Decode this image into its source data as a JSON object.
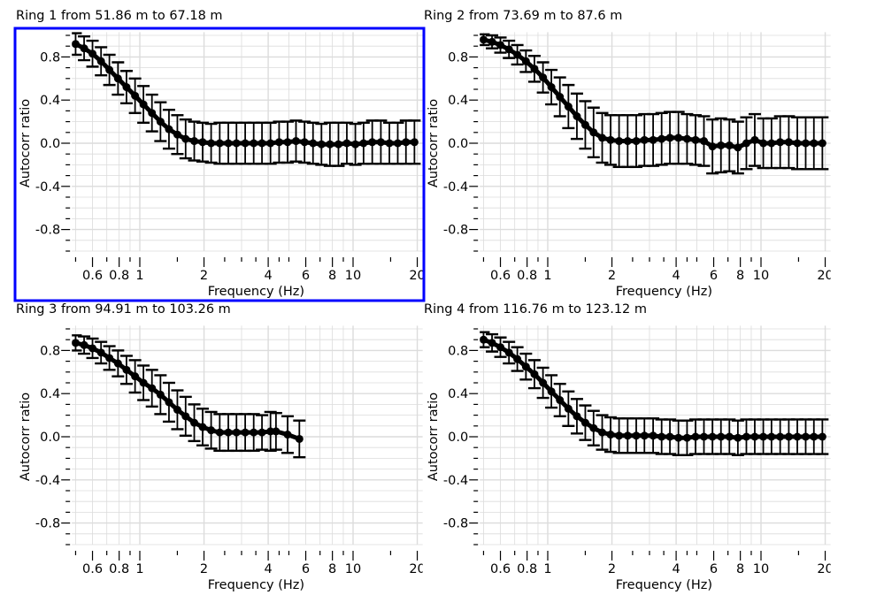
{
  "selected_panel": 0,
  "colors": {
    "selection": "#0000ff",
    "marker": "#000000",
    "grid": "#dcdcdc"
  },
  "chart_data": [
    {
      "type": "scatter",
      "title": "Ring 1 from 51.86 m to 67.18 m",
      "xlabel": "Frequency (Hz)",
      "ylabel": "Autocorr ratio",
      "xscale": "log",
      "xlim": [
        0.48,
        21.2
      ],
      "ylim": [
        -1.0,
        1.03
      ],
      "xticks": [
        "0.6",
        "0.8",
        "1",
        "2",
        "4",
        "6",
        "8",
        "10",
        "20"
      ],
      "yticks": [
        "0.8",
        "0.4",
        "0.0",
        "-0.4",
        "-0.8"
      ],
      "grid": true,
      "x": [
        0.5,
        0.548,
        0.6,
        0.658,
        0.72,
        0.79,
        0.866,
        0.95,
        1.04,
        1.14,
        1.25,
        1.37,
        1.5,
        1.64,
        1.8,
        1.97,
        2.16,
        2.37,
        2.6,
        2.84,
        3.12,
        3.42,
        3.74,
        4.1,
        4.5,
        4.93,
        5.4,
        5.92,
        6.49,
        7.11,
        7.79,
        8.54,
        9.35,
        10.25,
        11.2,
        12.3,
        13.5,
        14.8,
        16.2,
        17.7,
        19.4
      ],
      "y": [
        0.92,
        0.88,
        0.83,
        0.76,
        0.68,
        0.6,
        0.52,
        0.44,
        0.36,
        0.28,
        0.2,
        0.13,
        0.08,
        0.04,
        0.02,
        0.01,
        0.0,
        0.0,
        0.0,
        0.0,
        0.0,
        0.0,
        0.0,
        0.0,
        0.01,
        0.01,
        0.02,
        0.01,
        0.0,
        -0.01,
        -0.01,
        -0.01,
        0.0,
        -0.01,
        0.0,
        0.01,
        0.01,
        0.0,
        0.0,
        0.01,
        0.01
      ],
      "err": [
        0.1,
        0.11,
        0.12,
        0.13,
        0.14,
        0.15,
        0.15,
        0.16,
        0.17,
        0.17,
        0.18,
        0.18,
        0.18,
        0.18,
        0.18,
        0.18,
        0.18,
        0.19,
        0.19,
        0.19,
        0.19,
        0.19,
        0.19,
        0.19,
        0.19,
        0.19,
        0.19,
        0.19,
        0.19,
        0.19,
        0.2,
        0.2,
        0.19,
        0.19,
        0.19,
        0.2,
        0.2,
        0.19,
        0.19,
        0.2,
        0.2
      ]
    },
    {
      "type": "scatter",
      "title": "Ring 2 from 73.69 m to 87.6 m",
      "xlabel": "Frequency (Hz)",
      "ylabel": "Autocorr ratio",
      "xscale": "log",
      "xlim": [
        0.48,
        21.2
      ],
      "ylim": [
        -1.0,
        1.03
      ],
      "xticks": [
        "0.6",
        "0.8",
        "1",
        "2",
        "4",
        "6",
        "8",
        "10",
        "20"
      ],
      "yticks": [
        "0.8",
        "0.4",
        "0.0",
        "-0.4",
        "-0.8"
      ],
      "grid": true,
      "x": [
        0.5,
        0.548,
        0.6,
        0.658,
        0.72,
        0.79,
        0.866,
        0.95,
        1.04,
        1.14,
        1.25,
        1.37,
        1.5,
        1.64,
        1.8,
        1.97,
        2.16,
        2.37,
        2.6,
        2.84,
        3.12,
        3.42,
        3.74,
        4.1,
        4.5,
        4.93,
        5.4,
        5.92,
        6.49,
        7.11,
        7.79,
        8.54,
        9.35,
        10.25,
        11.2,
        12.3,
        13.5,
        14.8,
        16.2,
        17.7,
        19.4
      ],
      "y": [
        0.96,
        0.94,
        0.91,
        0.87,
        0.82,
        0.76,
        0.69,
        0.61,
        0.52,
        0.43,
        0.34,
        0.25,
        0.17,
        0.1,
        0.05,
        0.03,
        0.02,
        0.02,
        0.02,
        0.03,
        0.03,
        0.04,
        0.05,
        0.05,
        0.04,
        0.03,
        0.02,
        -0.03,
        -0.02,
        -0.02,
        -0.04,
        0.0,
        0.03,
        0.0,
        0.0,
        0.01,
        0.01,
        0.0,
        0.0,
        0.0,
        0.0
      ],
      "err": [
        0.05,
        0.06,
        0.07,
        0.08,
        0.09,
        0.1,
        0.12,
        0.14,
        0.16,
        0.18,
        0.2,
        0.21,
        0.22,
        0.23,
        0.23,
        0.23,
        0.24,
        0.24,
        0.24,
        0.24,
        0.24,
        0.24,
        0.24,
        0.24,
        0.23,
        0.23,
        0.23,
        0.25,
        0.25,
        0.24,
        0.24,
        0.24,
        0.24,
        0.23,
        0.23,
        0.24,
        0.24,
        0.24,
        0.24,
        0.24,
        0.24
      ]
    },
    {
      "type": "scatter",
      "title": "Ring 3 from 94.91 m to 103.26 m",
      "xlabel": "Frequency (Hz)",
      "ylabel": "Autocorr ratio",
      "xscale": "log",
      "xlim": [
        0.48,
        21.2
      ],
      "ylim": [
        -1.0,
        1.03
      ],
      "xticks": [
        "0.6",
        "0.8",
        "1",
        "2",
        "4",
        "6",
        "8",
        "10",
        "20"
      ],
      "yticks": [
        "0.8",
        "0.4",
        "0.0",
        "-0.4",
        "-0.8"
      ],
      "grid": true,
      "x": [
        0.5,
        0.548,
        0.6,
        0.658,
        0.72,
        0.79,
        0.866,
        0.95,
        1.04,
        1.14,
        1.25,
        1.37,
        1.5,
        1.64,
        1.8,
        1.97,
        2.16,
        2.37,
        2.6,
        2.84,
        3.12,
        3.42,
        3.74,
        4.1,
        4.35,
        4.93,
        5.6
      ],
      "y": [
        0.87,
        0.85,
        0.82,
        0.78,
        0.73,
        0.68,
        0.62,
        0.56,
        0.5,
        0.45,
        0.39,
        0.32,
        0.25,
        0.19,
        0.13,
        0.09,
        0.06,
        0.04,
        0.04,
        0.04,
        0.04,
        0.04,
        0.04,
        0.05,
        0.05,
        0.02,
        -0.02
      ],
      "err": [
        0.07,
        0.08,
        0.09,
        0.1,
        0.11,
        0.12,
        0.13,
        0.15,
        0.16,
        0.17,
        0.18,
        0.18,
        0.18,
        0.18,
        0.17,
        0.17,
        0.17,
        0.17,
        0.17,
        0.17,
        0.17,
        0.17,
        0.16,
        0.18,
        0.17,
        0.17,
        0.17
      ]
    },
    {
      "type": "scatter",
      "title": "Ring 4 from 116.76 m to 123.12 m",
      "xlabel": "Frequency (Hz)",
      "ylabel": "Autocorr ratio",
      "xscale": "log",
      "xlim": [
        0.48,
        21.2
      ],
      "ylim": [
        -1.0,
        1.03
      ],
      "xticks": [
        "0.6",
        "0.8",
        "1",
        "2",
        "4",
        "6",
        "8",
        "10",
        "20"
      ],
      "yticks": [
        "0.8",
        "0.4",
        "0.0",
        "-0.4",
        "-0.8"
      ],
      "grid": true,
      "x": [
        0.5,
        0.548,
        0.6,
        0.658,
        0.72,
        0.79,
        0.866,
        0.95,
        1.04,
        1.14,
        1.25,
        1.37,
        1.5,
        1.64,
        1.8,
        1.97,
        2.16,
        2.37,
        2.6,
        2.84,
        3.12,
        3.42,
        3.74,
        4.1,
        4.5,
        4.93,
        5.4,
        5.92,
        6.49,
        7.11,
        7.79,
        8.54,
        9.35,
        10.25,
        11.2,
        12.3,
        13.5,
        14.8,
        16.2,
        17.7,
        19.4
      ],
      "y": [
        0.9,
        0.87,
        0.83,
        0.78,
        0.72,
        0.65,
        0.58,
        0.5,
        0.42,
        0.34,
        0.26,
        0.19,
        0.13,
        0.08,
        0.04,
        0.02,
        0.01,
        0.01,
        0.01,
        0.01,
        0.01,
        0.0,
        0.0,
        -0.01,
        -0.01,
        0.0,
        0.0,
        0.0,
        0.0,
        0.0,
        -0.01,
        0.0,
        0.0,
        0.0,
        0.0,
        0.0,
        0.0,
        0.0,
        0.0,
        0.0,
        0.0
      ],
      "err": [
        0.07,
        0.08,
        0.09,
        0.1,
        0.11,
        0.12,
        0.13,
        0.14,
        0.15,
        0.15,
        0.16,
        0.16,
        0.16,
        0.16,
        0.16,
        0.16,
        0.16,
        0.16,
        0.16,
        0.16,
        0.16,
        0.16,
        0.16,
        0.16,
        0.16,
        0.16,
        0.16,
        0.16,
        0.16,
        0.16,
        0.16,
        0.16,
        0.16,
        0.16,
        0.16,
        0.16,
        0.16,
        0.16,
        0.16,
        0.16,
        0.16
      ]
    }
  ]
}
